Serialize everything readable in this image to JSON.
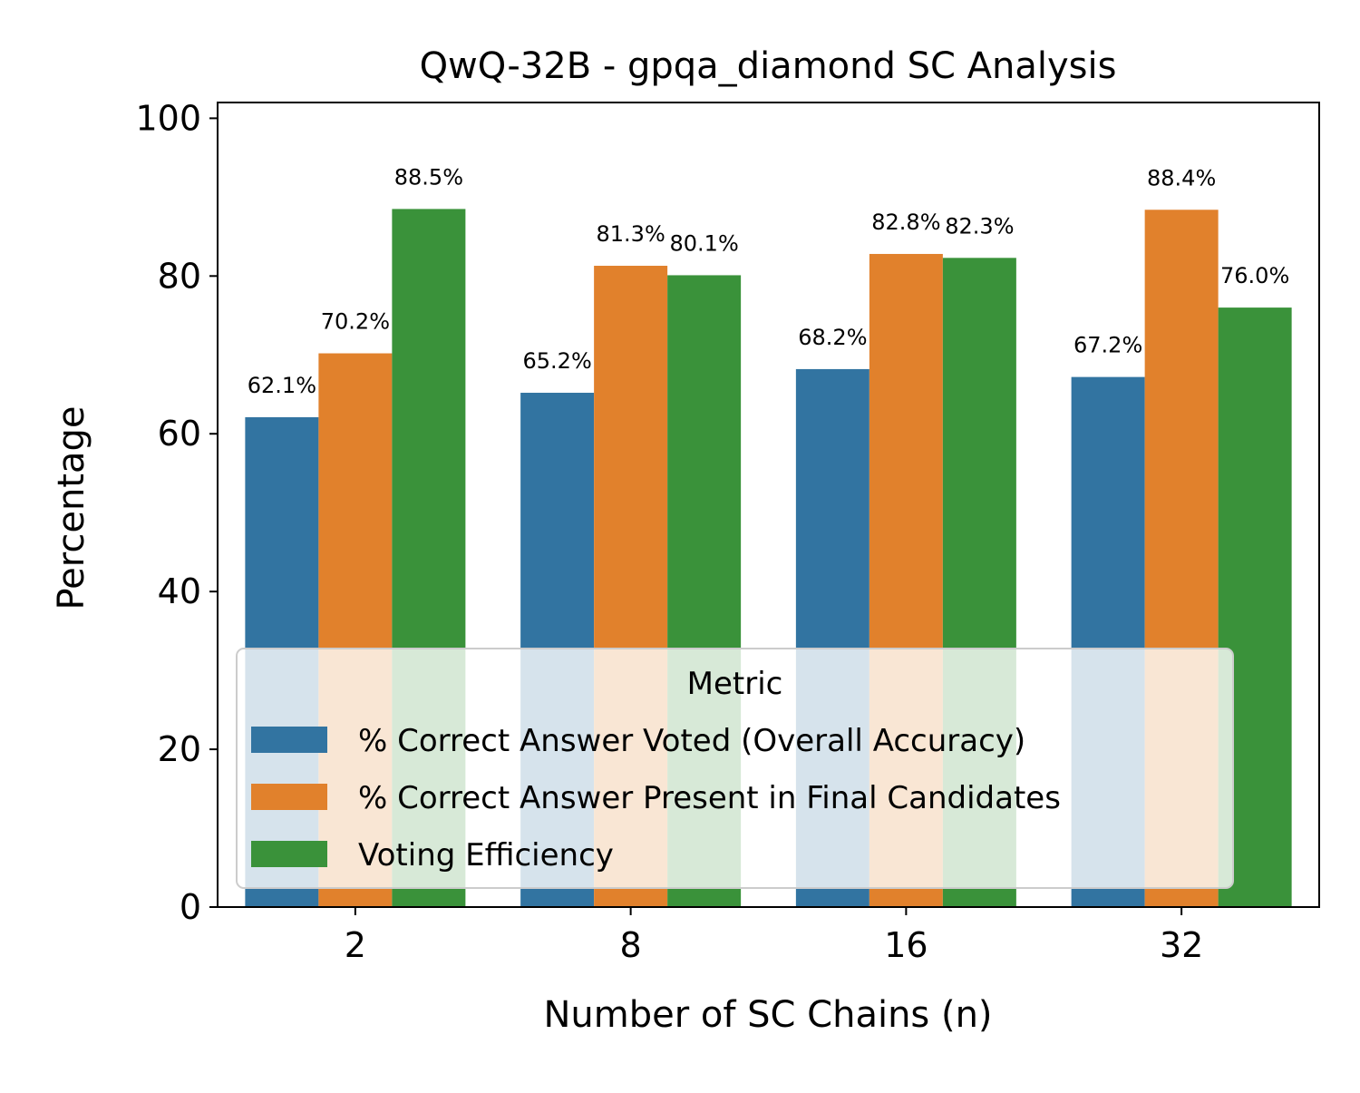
{
  "chart_data": {
    "type": "bar",
    "title": "QwQ-32B - gpqa_diamond SC Analysis",
    "xlabel": "Number of SC Chains (n)",
    "ylabel": "Percentage",
    "categories": [
      "2",
      "8",
      "16",
      "32"
    ],
    "ylim": [
      0,
      102
    ],
    "yticks": [
      0,
      20,
      40,
      60,
      80,
      100
    ],
    "grid": false,
    "legend": {
      "title": "Metric",
      "placement": "lower-center"
    },
    "series": [
      {
        "name": "% Correct Answer Voted (Overall Accuracy)",
        "color": "#3274a1",
        "values": [
          62.1,
          65.2,
          68.2,
          67.2
        ],
        "labels": [
          "62.1%",
          "65.2%",
          "68.2%",
          "67.2%"
        ]
      },
      {
        "name": "% Correct Answer Present in Final Candidates",
        "color": "#e1812c",
        "values": [
          70.2,
          81.3,
          82.8,
          88.4
        ],
        "labels": [
          "70.2%",
          "81.3%",
          "82.8%",
          "88.4%"
        ]
      },
      {
        "name": "Voting Efficiency",
        "color": "#3a923a",
        "values": [
          88.5,
          80.1,
          82.3,
          76.0
        ],
        "labels": [
          "88.5%",
          "80.1%",
          "82.3%",
          "76.0%"
        ]
      }
    ]
  }
}
